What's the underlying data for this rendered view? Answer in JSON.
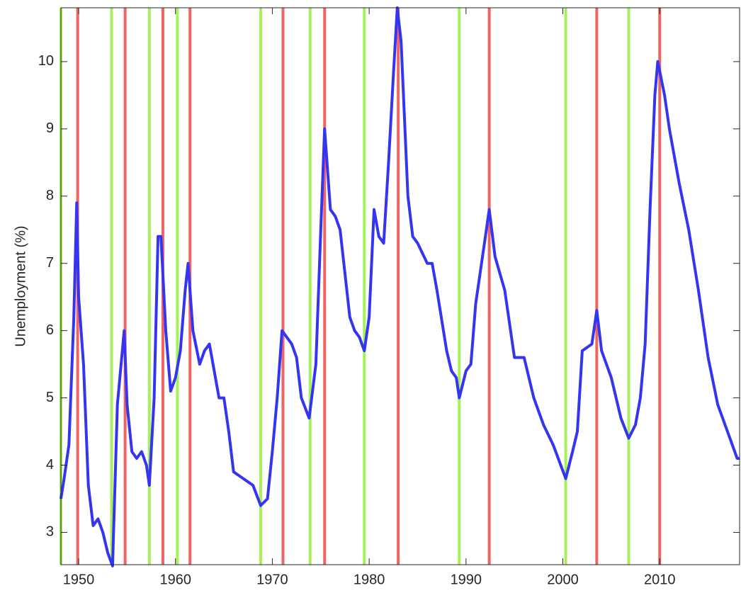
{
  "chart_data": {
    "type": "line",
    "ylabel": "Unemployment (%)",
    "xlim": [
      1948.17,
      2018.25
    ],
    "ylim": [
      2.52,
      10.8
    ],
    "xticks": [
      1950,
      1960,
      1970,
      1980,
      1990,
      2000,
      2010
    ],
    "yticks": [
      3,
      4,
      5,
      6,
      7,
      8,
      9,
      10
    ],
    "vlines": [
      {
        "color": "#a6f05a",
        "x": [
          1948.17,
          1953.4,
          1957.3,
          1960.2,
          1968.8,
          1973.9,
          1979.5,
          1989.3,
          2000.3,
          2006.8
        ]
      },
      {
        "color": "#f06464",
        "x": [
          1949.9,
          1954.8,
          1958.7,
          1961.5,
          1971.1,
          1975.4,
          1983.0,
          1992.4,
          2003.5,
          2010.0
        ]
      }
    ],
    "series": [
      {
        "color": "#3535f0",
        "x": [
          1948.17,
          1948.5,
          1949.0,
          1949.5,
          1949.8,
          1950.0,
          1950.5,
          1951.0,
          1951.5,
          1952.0,
          1952.5,
          1953.0,
          1953.5,
          1954.0,
          1954.7,
          1955.0,
          1955.5,
          1956.0,
          1956.5,
          1957.0,
          1957.3,
          1957.8,
          1958.2,
          1958.5,
          1959.0,
          1959.5,
          1960.0,
          1960.5,
          1961.0,
          1961.3,
          1961.8,
          1962.5,
          1963.0,
          1963.5,
          1964.0,
          1964.5,
          1965.0,
          1965.5,
          1966.0,
          1967.0,
          1968.0,
          1968.8,
          1969.5,
          1970.0,
          1970.5,
          1971.0,
          1972.0,
          1972.5,
          1973.0,
          1973.8,
          1974.5,
          1975.0,
          1975.4,
          1976.0,
          1976.5,
          1977.0,
          1978.0,
          1978.5,
          1979.0,
          1979.5,
          1980.0,
          1980.5,
          1981.0,
          1981.5,
          1982.0,
          1982.5,
          1982.9,
          1983.3,
          1984.0,
          1984.5,
          1985.0,
          1986.0,
          1986.5,
          1987.0,
          1988.0,
          1988.5,
          1989.0,
          1989.3,
          1990.0,
          1990.5,
          1991.0,
          1992.0,
          1992.4,
          1993.0,
          1994.0,
          1995.0,
          1996.0,
          1997.0,
          1998.0,
          1999.0,
          2000.3,
          2001.0,
          2001.5,
          2002.0,
          2003.0,
          2003.5,
          2004.0,
          2005.0,
          2006.0,
          2006.8,
          2007.5,
          2008.0,
          2008.5,
          2009.0,
          2009.5,
          2009.8,
          2010.5,
          2011.0,
          2012.0,
          2013.0,
          2014.0,
          2015.0,
          2016.0,
          2017.0,
          2018.0,
          2018.25
        ],
        "values": [
          3.5,
          3.8,
          4.3,
          6.2,
          7.9,
          6.5,
          5.5,
          3.7,
          3.1,
          3.2,
          3.0,
          2.7,
          2.5,
          4.9,
          6.0,
          4.9,
          4.2,
          4.1,
          4.2,
          4.0,
          3.7,
          5.0,
          7.4,
          7.4,
          6.0,
          5.1,
          5.3,
          5.7,
          6.6,
          7.0,
          6.0,
          5.5,
          5.7,
          5.8,
          5.4,
          5.0,
          5.0,
          4.5,
          3.9,
          3.8,
          3.7,
          3.4,
          3.5,
          4.2,
          5.0,
          6.0,
          5.8,
          5.6,
          5.0,
          4.7,
          5.5,
          7.5,
          9.0,
          7.8,
          7.7,
          7.5,
          6.2,
          6.0,
          5.9,
          5.7,
          6.2,
          7.8,
          7.4,
          7.3,
          8.5,
          9.8,
          10.8,
          10.3,
          8.0,
          7.4,
          7.3,
          7.0,
          7.0,
          6.6,
          5.7,
          5.4,
          5.3,
          5.0,
          5.4,
          5.5,
          6.4,
          7.4,
          7.8,
          7.1,
          6.6,
          5.6,
          5.6,
          5.0,
          4.6,
          4.3,
          3.8,
          4.2,
          4.5,
          5.7,
          5.8,
          6.3,
          5.7,
          5.3,
          4.7,
          4.4,
          4.6,
          5.0,
          5.8,
          7.8,
          9.5,
          10.0,
          9.5,
          9.0,
          8.2,
          7.5,
          6.6,
          5.6,
          4.9,
          4.5,
          4.1,
          4.1
        ]
      }
    ]
  }
}
